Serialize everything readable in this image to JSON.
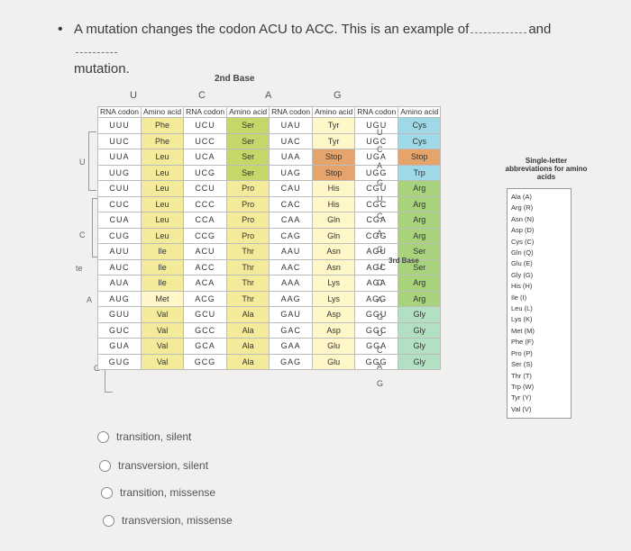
{
  "question": {
    "text": "A mutation changes the codon ACU to ACC. This is an example of",
    "and_word": "and",
    "last_word": "mutation."
  },
  "table": {
    "second_base_label": "2nd Base",
    "third_base_label": "3rd Base",
    "column_letters": [
      "U",
      "C",
      "A",
      "G"
    ],
    "first_base_letters": [
      "U",
      "C",
      "A",
      "G"
    ],
    "left_marker": "te",
    "header": [
      "RNA codon",
      "Amino acid",
      "RNA codon",
      "Amino acid",
      "RNA codon",
      "Amino acid",
      "RNA codon",
      "Amino acid"
    ],
    "third_base_letters": [
      "U",
      "C",
      "A",
      "G",
      "U",
      "C",
      "A",
      "G",
      "U",
      "C",
      "A",
      "G",
      "U",
      "C",
      "A",
      "G"
    ],
    "rows": [
      [
        "UUU",
        "Phe",
        "UCU",
        "Ser",
        "UAU",
        "Tyr",
        "UGU",
        "Cys"
      ],
      [
        "UUC",
        "Phe",
        "UCC",
        "Ser",
        "UAC",
        "Tyr",
        "UGC",
        "Cys"
      ],
      [
        "UUA",
        "Leu",
        "UCA",
        "Ser",
        "UAA",
        "Stop",
        "UGA",
        "Stop"
      ],
      [
        "UUG",
        "Leu",
        "UCG",
        "Ser",
        "UAG",
        "Stop",
        "UGG",
        "Trp"
      ],
      [
        "CUU",
        "Leu",
        "CCU",
        "Pro",
        "CAU",
        "His",
        "CGU",
        "Arg"
      ],
      [
        "CUC",
        "Leu",
        "CCC",
        "Pro",
        "CAC",
        "His",
        "CGC",
        "Arg"
      ],
      [
        "CUA",
        "Leu",
        "CCA",
        "Pro",
        "CAA",
        "Gln",
        "CGA",
        "Arg"
      ],
      [
        "CUG",
        "Leu",
        "CCG",
        "Pro",
        "CAG",
        "Gln",
        "CGG",
        "Arg"
      ],
      [
        "AUU",
        "Ile",
        "ACU",
        "Thr",
        "AAU",
        "Asn",
        "AGU",
        "Ser"
      ],
      [
        "AUC",
        "Ile",
        "ACC",
        "Thr",
        "AAC",
        "Asn",
        "AGC",
        "Ser"
      ],
      [
        "AUA",
        "Ile",
        "ACA",
        "Thr",
        "AAA",
        "Lys",
        "AGA",
        "Arg"
      ],
      [
        "AUG",
        "Met",
        "ACG",
        "Thr",
        "AAG",
        "Lys",
        "AGG",
        "Arg"
      ],
      [
        "GUU",
        "Val",
        "GCU",
        "Ala",
        "GAU",
        "Asp",
        "GGU",
        "Gly"
      ],
      [
        "GUC",
        "Val",
        "GCC",
        "Ala",
        "GAC",
        "Asp",
        "GGC",
        "Gly"
      ],
      [
        "GUA",
        "Val",
        "GCA",
        "Ala",
        "GAA",
        "Glu",
        "GGA",
        "Gly"
      ],
      [
        "GUG",
        "Val",
        "GCG",
        "Ala",
        "GAG",
        "Glu",
        "GGG",
        "Gly"
      ]
    ]
  },
  "abbreviations": {
    "title": "Single-letter abbreviations for amino acids",
    "items": [
      "Ala (A)",
      "Arg (R)",
      "Asn (N)",
      "Asp (D)",
      "Cys (C)",
      "Gln (Q)",
      "Glu (E)",
      "Gly (G)",
      "His (H)",
      "Ile (I)",
      "Leu (L)",
      "Lys (K)",
      "Met (M)",
      "Phe (F)",
      "Pro (P)",
      "Ser (S)",
      "Thr (T)",
      "Trp (W)",
      "Tyr (Y)",
      "Val (V)"
    ]
  },
  "options": [
    {
      "label": "transition, silent"
    },
    {
      "label": "transversion, silent"
    },
    {
      "label": "transition, missense"
    },
    {
      "label": "transversion, missense"
    }
  ]
}
